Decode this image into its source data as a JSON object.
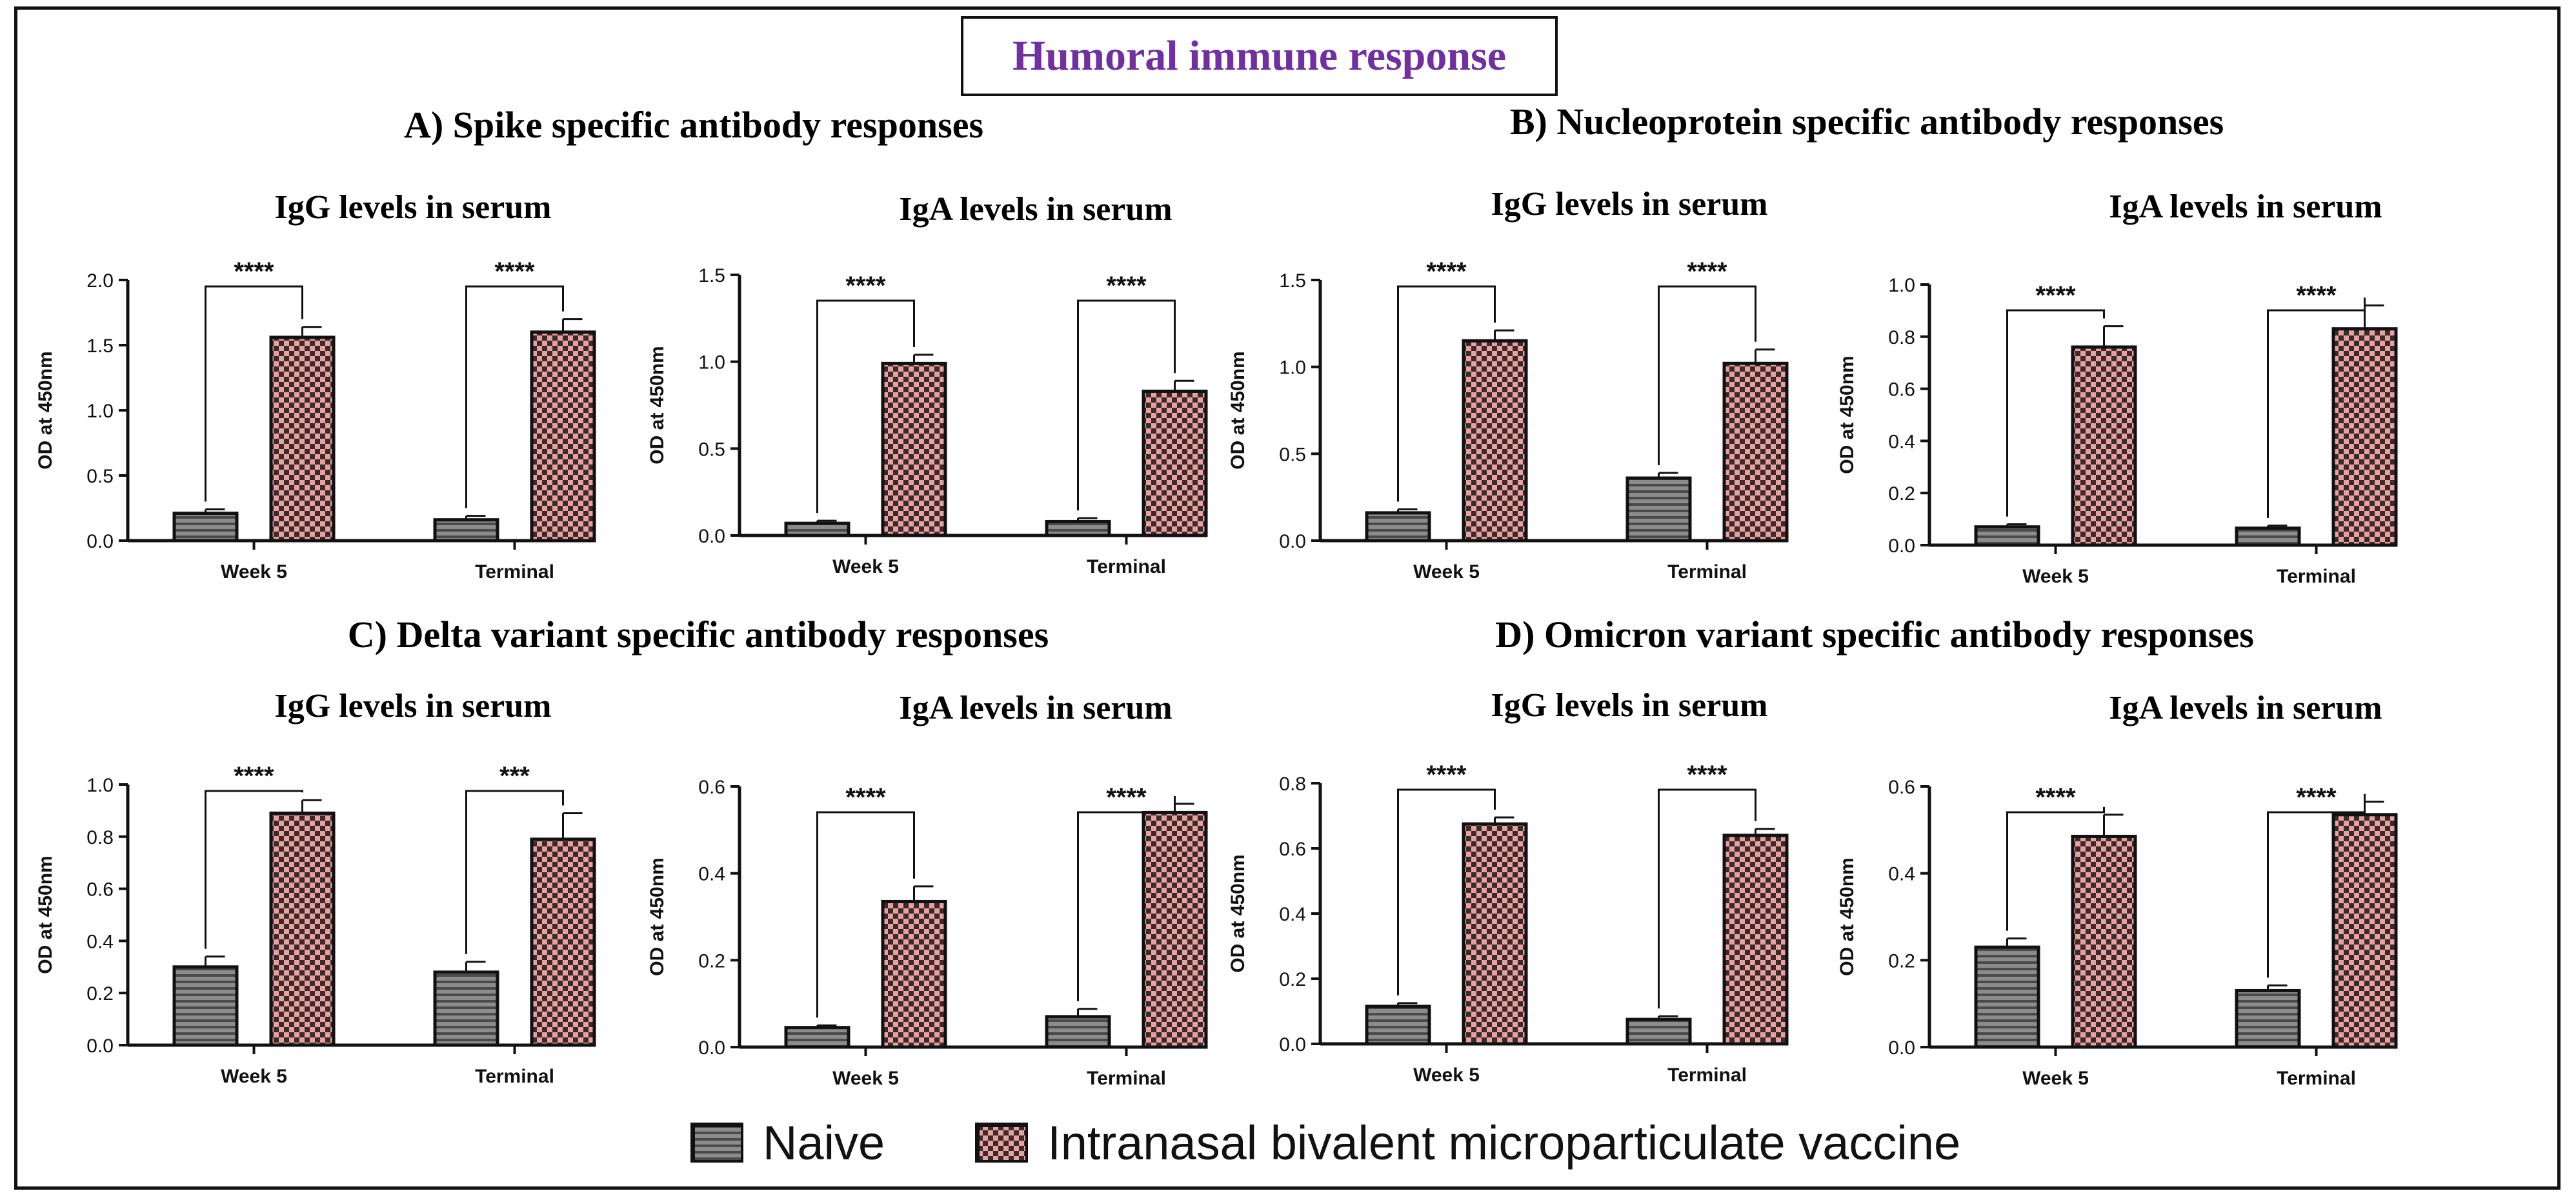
{
  "figure": {
    "title": "Humoral immune response",
    "panels": [
      {
        "id": "A",
        "title": "A) Spike specific antibody responses"
      },
      {
        "id": "B",
        "title": "B) Nucleoprotein specific antibody responses"
      },
      {
        "id": "C",
        "title": "C) Delta variant specific antibody responses"
      },
      {
        "id": "D",
        "title": "D) Omicron variant specific antibody responses"
      }
    ],
    "legend": [
      {
        "name": "Naive",
        "pattern": "horizontal-stripes",
        "color": "#8c8c8c"
      },
      {
        "name": "Intranasal bivalent microparticulate vaccine",
        "pattern": "checkerboard",
        "color": "#e8a0a0"
      }
    ],
    "colors": {
      "title": "#7030A0",
      "naive": "#8c8c8c",
      "vaccine": "#e8a0a0",
      "vaccine_dark": "#3a2a2a",
      "axis": "#111111"
    }
  },
  "chart_data": [
    {
      "panel": "A",
      "type": "bar",
      "title": "IgG levels in serum",
      "ylabel": "OD at 450nm",
      "categories": [
        "Week 5",
        "Terminal"
      ],
      "ylim": [
        0,
        2.0
      ],
      "yticks": [
        "0.0",
        "0.5",
        "1.0",
        "1.5",
        "2.0"
      ],
      "ytick_values": [
        0,
        0.5,
        1.0,
        1.5,
        2.0
      ],
      "series": [
        {
          "name": "Naive",
          "values": [
            0.21,
            0.16
          ],
          "errors": [
            0.03,
            0.03
          ]
        },
        {
          "name": "Intranasal bivalent microparticulate vaccine",
          "values": [
            1.56,
            1.6
          ],
          "errors": [
            0.08,
            0.1
          ]
        }
      ],
      "significance": [
        "****",
        "****"
      ]
    },
    {
      "panel": "A",
      "type": "bar",
      "title": "IgA levels in serum",
      "ylabel": "OD at 450nm",
      "categories": [
        "Week 5",
        "Terminal"
      ],
      "ylim": [
        0,
        1.5
      ],
      "yticks": [
        "0.0",
        "0.5",
        "1.0",
        "1.5"
      ],
      "ytick_values": [
        0,
        0.5,
        1.0,
        1.5
      ],
      "series": [
        {
          "name": "Naive",
          "values": [
            0.07,
            0.08
          ],
          "errors": [
            0.015,
            0.02
          ]
        },
        {
          "name": "Intranasal bivalent microparticulate vaccine",
          "values": [
            0.99,
            0.83
          ],
          "errors": [
            0.05,
            0.06
          ]
        }
      ],
      "significance": [
        "****",
        "****"
      ]
    },
    {
      "panel": "B",
      "type": "bar",
      "title": "IgG levels in serum",
      "ylabel": "OD at 450nm",
      "categories": [
        "Week 5",
        "Terminal"
      ],
      "ylim": [
        0,
        1.5
      ],
      "yticks": [
        "0.0",
        "0.5",
        "1.0",
        "1.5"
      ],
      "ytick_values": [
        0,
        0.5,
        1.0,
        1.5
      ],
      "series": [
        {
          "name": "Naive",
          "values": [
            0.16,
            0.36
          ],
          "errors": [
            0.02,
            0.03
          ]
        },
        {
          "name": "Intranasal bivalent microparticulate vaccine",
          "values": [
            1.15,
            1.02
          ],
          "errors": [
            0.06,
            0.08
          ]
        }
      ],
      "significance": [
        "****",
        "****"
      ]
    },
    {
      "panel": "B",
      "type": "bar",
      "title": "IgA levels in serum",
      "ylabel": "OD at 450nm",
      "categories": [
        "Week 5",
        "Terminal"
      ],
      "ylim": [
        0,
        1.0
      ],
      "yticks": [
        "0.0",
        "0.2",
        "0.4",
        "0.6",
        "0.8",
        "1.0"
      ],
      "ytick_values": [
        0,
        0.2,
        0.4,
        0.6,
        0.8,
        1.0
      ],
      "series": [
        {
          "name": "Naive",
          "values": [
            0.07,
            0.065
          ],
          "errors": [
            0.01,
            0.01
          ]
        },
        {
          "name": "Intranasal bivalent microparticulate vaccine",
          "values": [
            0.76,
            0.83
          ],
          "errors": [
            0.08,
            0.09
          ]
        }
      ],
      "significance": [
        "****",
        "****"
      ]
    },
    {
      "panel": "C",
      "type": "bar",
      "title": "IgG levels in serum",
      "ylabel": "OD at 450nm",
      "categories": [
        "Week 5",
        "Terminal"
      ],
      "ylim": [
        0,
        1.0
      ],
      "yticks": [
        "0.0",
        "0.2",
        "0.4",
        "0.6",
        "0.8",
        "1.0"
      ],
      "ytick_values": [
        0,
        0.2,
        0.4,
        0.6,
        0.8,
        1.0
      ],
      "series": [
        {
          "name": "Naive",
          "values": [
            0.3,
            0.28
          ],
          "errors": [
            0.04,
            0.04
          ]
        },
        {
          "name": "Intranasal bivalent microparticulate vaccine",
          "values": [
            0.89,
            0.79
          ],
          "errors": [
            0.05,
            0.1
          ]
        }
      ],
      "significance": [
        "****",
        "***"
      ]
    },
    {
      "panel": "C",
      "type": "bar",
      "title": "IgA levels in serum",
      "ylabel": "OD at 450nm",
      "categories": [
        "Week 5",
        "Terminal"
      ],
      "ylim": [
        0,
        0.6
      ],
      "yticks": [
        "0.0",
        "0.2",
        "0.4",
        "0.6"
      ],
      "ytick_values": [
        0,
        0.2,
        0.4,
        0.6
      ],
      "series": [
        {
          "name": "Naive",
          "values": [
            0.045,
            0.07
          ],
          "errors": [
            0.005,
            0.018
          ]
        },
        {
          "name": "Intranasal bivalent microparticulate vaccine",
          "values": [
            0.335,
            0.54
          ],
          "errors": [
            0.035,
            0.02
          ]
        }
      ],
      "significance": [
        "****",
        "****"
      ]
    },
    {
      "panel": "D",
      "type": "bar",
      "title": "IgG levels in serum",
      "ylabel": "OD at 450nm",
      "categories": [
        "Week 5",
        "Terminal"
      ],
      "ylim": [
        0,
        0.8
      ],
      "yticks": [
        "0.0",
        "0.2",
        "0.4",
        "0.6",
        "0.8"
      ],
      "ytick_values": [
        0,
        0.2,
        0.4,
        0.6,
        0.8
      ],
      "series": [
        {
          "name": "Naive",
          "values": [
            0.115,
            0.075
          ],
          "errors": [
            0.01,
            0.01
          ]
        },
        {
          "name": "Intranasal bivalent microparticulate vaccine",
          "values": [
            0.675,
            0.64
          ],
          "errors": [
            0.02,
            0.02
          ]
        }
      ],
      "significance": [
        "****",
        "****"
      ]
    },
    {
      "panel": "D",
      "type": "bar",
      "title": "IgA levels in serum",
      "ylabel": "OD at 450nm",
      "categories": [
        "Week 5",
        "Terminal"
      ],
      "ylim": [
        0,
        0.6
      ],
      "yticks": [
        "0.0",
        "0.2",
        "0.4",
        "0.6"
      ],
      "ytick_values": [
        0,
        0.2,
        0.4,
        0.6
      ],
      "series": [
        {
          "name": "Naive",
          "values": [
            0.23,
            0.13
          ],
          "errors": [
            0.02,
            0.012
          ]
        },
        {
          "name": "Intranasal bivalent microparticulate vaccine",
          "values": [
            0.485,
            0.535
          ],
          "errors": [
            0.05,
            0.03
          ]
        }
      ],
      "significance": [
        "****",
        "****"
      ]
    }
  ]
}
